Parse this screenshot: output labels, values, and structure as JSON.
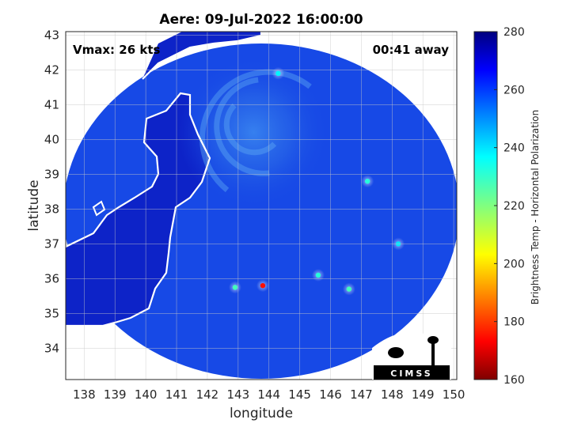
{
  "title": "Aere: 09-Jul-2022 16:00:00",
  "annotations": {
    "vmax": "Vmax: 26 kts",
    "away": "00:41 away"
  },
  "axes": {
    "xlabel": "longitude",
    "ylabel": "latitude",
    "xlim": [
      137.4,
      150.1
    ],
    "ylim": [
      33.1,
      43.1
    ],
    "xticks": [
      138,
      139,
      140,
      141,
      142,
      143,
      144,
      145,
      146,
      147,
      148,
      149,
      150
    ],
    "yticks": [
      34,
      35,
      36,
      37,
      38,
      39,
      40,
      41,
      42,
      43
    ],
    "grid": true
  },
  "colorbar": {
    "label": "Brightness Temp - Horizontal Polarization",
    "range": [
      160,
      280
    ],
    "ticks": [
      160,
      180,
      200,
      220,
      240,
      260,
      280
    ],
    "colormap": "jet"
  },
  "logo": {
    "text": "CIMSS"
  },
  "colors": {
    "scene_background": "#1749e6",
    "land": "#0d23c8",
    "coastline": "#ffffff",
    "grid": "#c8c8c8"
  },
  "storm": {
    "name": "Aere",
    "center": [
      143.5,
      40.2
    ]
  },
  "convective_cells": [
    {
      "lon": 143.8,
      "lat": 35.8,
      "tb": 175
    },
    {
      "lon": 142.9,
      "lat": 35.75,
      "tb": 228
    },
    {
      "lon": 145.6,
      "lat": 36.1,
      "tb": 232
    },
    {
      "lon": 146.6,
      "lat": 35.7,
      "tb": 228
    },
    {
      "lon": 147.2,
      "lat": 38.8,
      "tb": 232
    },
    {
      "lon": 144.3,
      "lat": 41.9,
      "tb": 238
    },
    {
      "lon": 148.2,
      "lat": 37.0,
      "tb": 240
    }
  ]
}
